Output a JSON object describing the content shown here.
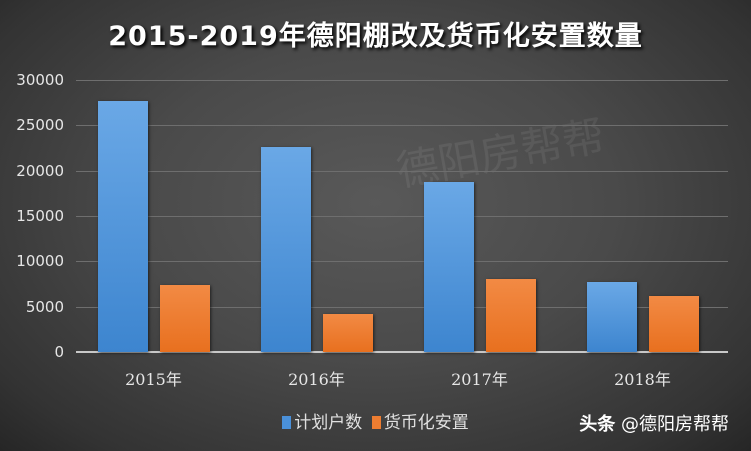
{
  "title": "2015-2019年德阳棚改及货币化安置数量",
  "chart_data": {
    "type": "bar",
    "title": "2015-2019年德阳棚改及货币化安置数量",
    "categories": [
      "2015年",
      "2016年",
      "2017年",
      "2018年"
    ],
    "series": [
      {
        "name": "计划户数",
        "color": "#4a90d9",
        "values": [
          27700,
          22600,
          18750,
          7700
        ]
      },
      {
        "name": "货币化安置",
        "color": "#ed7d31",
        "values": [
          7400,
          4200,
          8050,
          6200
        ]
      }
    ],
    "xlabel": "",
    "ylabel": "",
    "ylim": [
      0,
      30000
    ],
    "yticks": [
      "0",
      "5000",
      "10000",
      "15000",
      "20000",
      "25000",
      "30000"
    ],
    "grid": true,
    "legend_position": "bottom"
  },
  "legend": {
    "items": [
      "计划户数",
      "货币化安置"
    ]
  },
  "source_watermark": {
    "prefix": "头条",
    "handle": "@德阳房帮帮"
  },
  "background_watermark": "德阳房帮帮"
}
